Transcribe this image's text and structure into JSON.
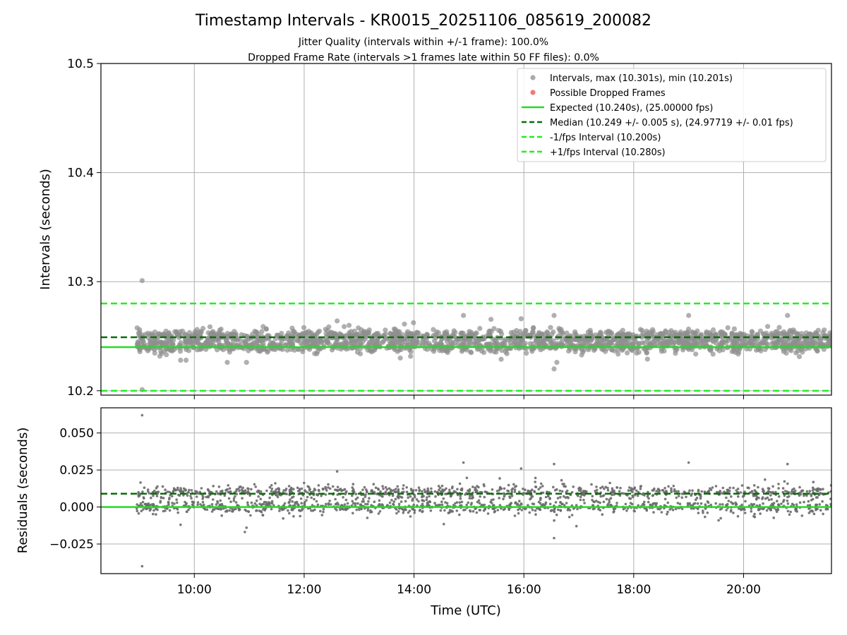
{
  "figure": {
    "title": "Timestamp Intervals - KR0015_20251106_085619_200082",
    "subtitle_1": "Jitter Quality (intervals within +/-1 frame): 100.0%",
    "subtitle_2": "Dropped Frame Rate (intervals >1 frames late within 50 FF files): 0.0%"
  },
  "chart_data": [
    {
      "type": "scatter",
      "ylabel": "Intervals (seconds)",
      "xlim": [
        8.3,
        21.6
      ],
      "ylim": [
        10.196,
        10.5
      ],
      "yticks": [
        10.2,
        10.3,
        10.4,
        10.5
      ],
      "ytick_labels": [
        "10.2",
        "10.3",
        "10.4",
        "10.5"
      ],
      "xticks": [
        10,
        12,
        14,
        16,
        18,
        20
      ],
      "grid": true,
      "legend_position": "top-right",
      "legend": [
        {
          "label": "Intervals, max (10.301s), min (10.201s)",
          "kind": "point",
          "color": "#9b9b9b"
        },
        {
          "label": "Possible Dropped Frames",
          "kind": "point",
          "color": "#f06060"
        },
        {
          "label": "Expected (10.240s), (25.00000 fps)",
          "kind": "line",
          "color": "#22dd22"
        },
        {
          "label": "Median (10.249 +/- 0.005 s), (24.97719 +/- 0.01 fps)",
          "kind": "dash",
          "color": "#0a6e0a"
        },
        {
          "label": "-1/fps Interval (10.200s)",
          "kind": "dash",
          "color": "#22ee22"
        },
        {
          "label": "+1/fps Interval (10.280s)",
          "kind": "dash",
          "color": "#22ee22"
        }
      ],
      "reference_lines": {
        "expected": 10.24,
        "median": 10.249,
        "minus_one_frame": 10.2,
        "plus_one_frame": 10.28
      },
      "interval_range": {
        "time_start_h": 8.95,
        "time_end_h": 21.6,
        "upper_band": 10.25,
        "lower_band": 10.241,
        "max": 10.301,
        "min": 10.201
      },
      "outliers": [
        {
          "x": 9.05,
          "y": 10.301
        },
        {
          "x": 9.05,
          "y": 10.201
        },
        {
          "x": 9.75,
          "y": 10.228
        },
        {
          "x": 9.85,
          "y": 10.228
        },
        {
          "x": 10.6,
          "y": 10.226
        },
        {
          "x": 10.95,
          "y": 10.226
        },
        {
          "x": 14.9,
          "y": 10.269
        },
        {
          "x": 15.95,
          "y": 10.266
        },
        {
          "x": 16.55,
          "y": 10.269
        },
        {
          "x": 16.6,
          "y": 10.226
        },
        {
          "x": 16.55,
          "y": 10.22
        },
        {
          "x": 19.0,
          "y": 10.269
        },
        {
          "x": 20.8,
          "y": 10.269
        },
        {
          "x": 12.6,
          "y": 10.264
        },
        {
          "x": 13.75,
          "y": 10.23
        },
        {
          "x": 18.25,
          "y": 10.229
        }
      ]
    },
    {
      "type": "scatter",
      "xlabel": "Time (UTC)",
      "ylabel": "Residuals (seconds)",
      "xlim": [
        8.3,
        21.6
      ],
      "ylim": [
        -0.045,
        0.067
      ],
      "yticks": [
        -0.025,
        0.0,
        0.025,
        0.05
      ],
      "ytick_labels": [
        "−0.025",
        "0.000",
        "0.025",
        "0.050"
      ],
      "xticks": [
        10,
        12,
        14,
        16,
        18,
        20
      ],
      "xtick_labels": [
        "10:00",
        "12:00",
        "14:00",
        "16:00",
        "18:00",
        "20:00"
      ],
      "grid": true,
      "reference_lines": {
        "zero": 0.0,
        "median_offset": 0.009
      },
      "residual_range": {
        "upper_band": 0.01,
        "lower_band": 0.0
      },
      "outliers": [
        {
          "x": 9.05,
          "y": 0.062
        },
        {
          "x": 9.05,
          "y": -0.04
        },
        {
          "x": 9.75,
          "y": -0.012
        },
        {
          "x": 14.9,
          "y": 0.03
        },
        {
          "x": 15.95,
          "y": 0.026
        },
        {
          "x": 16.55,
          "y": -0.021
        },
        {
          "x": 16.55,
          "y": 0.029
        },
        {
          "x": 19.0,
          "y": 0.03
        },
        {
          "x": 20.8,
          "y": 0.029
        },
        {
          "x": 12.6,
          "y": 0.024
        },
        {
          "x": 10.95,
          "y": -0.014
        }
      ]
    }
  ]
}
